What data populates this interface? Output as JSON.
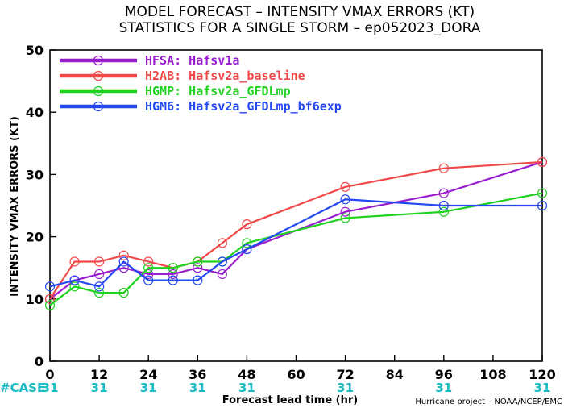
{
  "chart_data": {
    "type": "line",
    "title": "MODEL FORECAST – INTENSITY VMAX ERRORS (KT)",
    "subtitle": "STATISTICS FOR A SINGLE STORM – ep052023_DORA",
    "xlabel": "Forecast lead time (hr)",
    "ylabel": "INTENSITY VMAX ERRORS (KT)",
    "xlim": [
      0,
      120
    ],
    "ylim": [
      0,
      50
    ],
    "x_ticks": [
      0,
      12,
      24,
      36,
      48,
      60,
      72,
      84,
      96,
      108,
      120
    ],
    "y_ticks": [
      0,
      10,
      20,
      30,
      40,
      50
    ],
    "grid": false,
    "legend_position": "top-left",
    "series": [
      {
        "name": "HFSA:  Hafsv1a",
        "color": "#9a1ed0",
        "x": [
          0,
          6,
          12,
          18,
          24,
          30,
          36,
          42,
          48,
          72,
          96,
          120
        ],
        "y": [
          10,
          13,
          14,
          15,
          14,
          14,
          15,
          14,
          18,
          24,
          27,
          32
        ]
      },
      {
        "name": "H2AB:  Hafsv2a_baseline",
        "color": "#f04848",
        "x": [
          0,
          6,
          12,
          18,
          24,
          30,
          36,
          42,
          48,
          72,
          96,
          120
        ],
        "y": [
          10,
          16,
          16,
          17,
          16,
          15,
          16,
          19,
          22,
          28,
          31,
          32
        ]
      },
      {
        "name": "HGMP:  Hafsv2a_GFDLmp",
        "color": "#1ed21e",
        "x": [
          0,
          6,
          12,
          18,
          24,
          30,
          36,
          42,
          48,
          72,
          96,
          120
        ],
        "y": [
          9,
          12,
          11,
          11,
          15,
          15,
          16,
          16,
          19,
          23,
          24,
          27
        ]
      },
      {
        "name": "HGM6:  Hafsv2a_GFDLmp_bf6exp",
        "color": "#2448f0",
        "x": [
          0,
          6,
          12,
          18,
          24,
          30,
          36,
          42,
          48,
          72,
          96,
          120
        ],
        "y": [
          12,
          13,
          12,
          16,
          13,
          13,
          13,
          16,
          18,
          26,
          25,
          25
        ]
      }
    ],
    "case_label": "#CASE",
    "case_counts": [
      {
        "x": 0,
        "count": "31"
      },
      {
        "x": 12,
        "count": "31"
      },
      {
        "x": 24,
        "count": "31"
      },
      {
        "x": 36,
        "count": "31"
      },
      {
        "x": 48,
        "count": "31"
      },
      {
        "x": 72,
        "count": "31"
      },
      {
        "x": 96,
        "count": "31"
      },
      {
        "x": 120,
        "count": "31"
      }
    ],
    "credit": "Hurricane project – NOAA/NCEP/EMC"
  }
}
